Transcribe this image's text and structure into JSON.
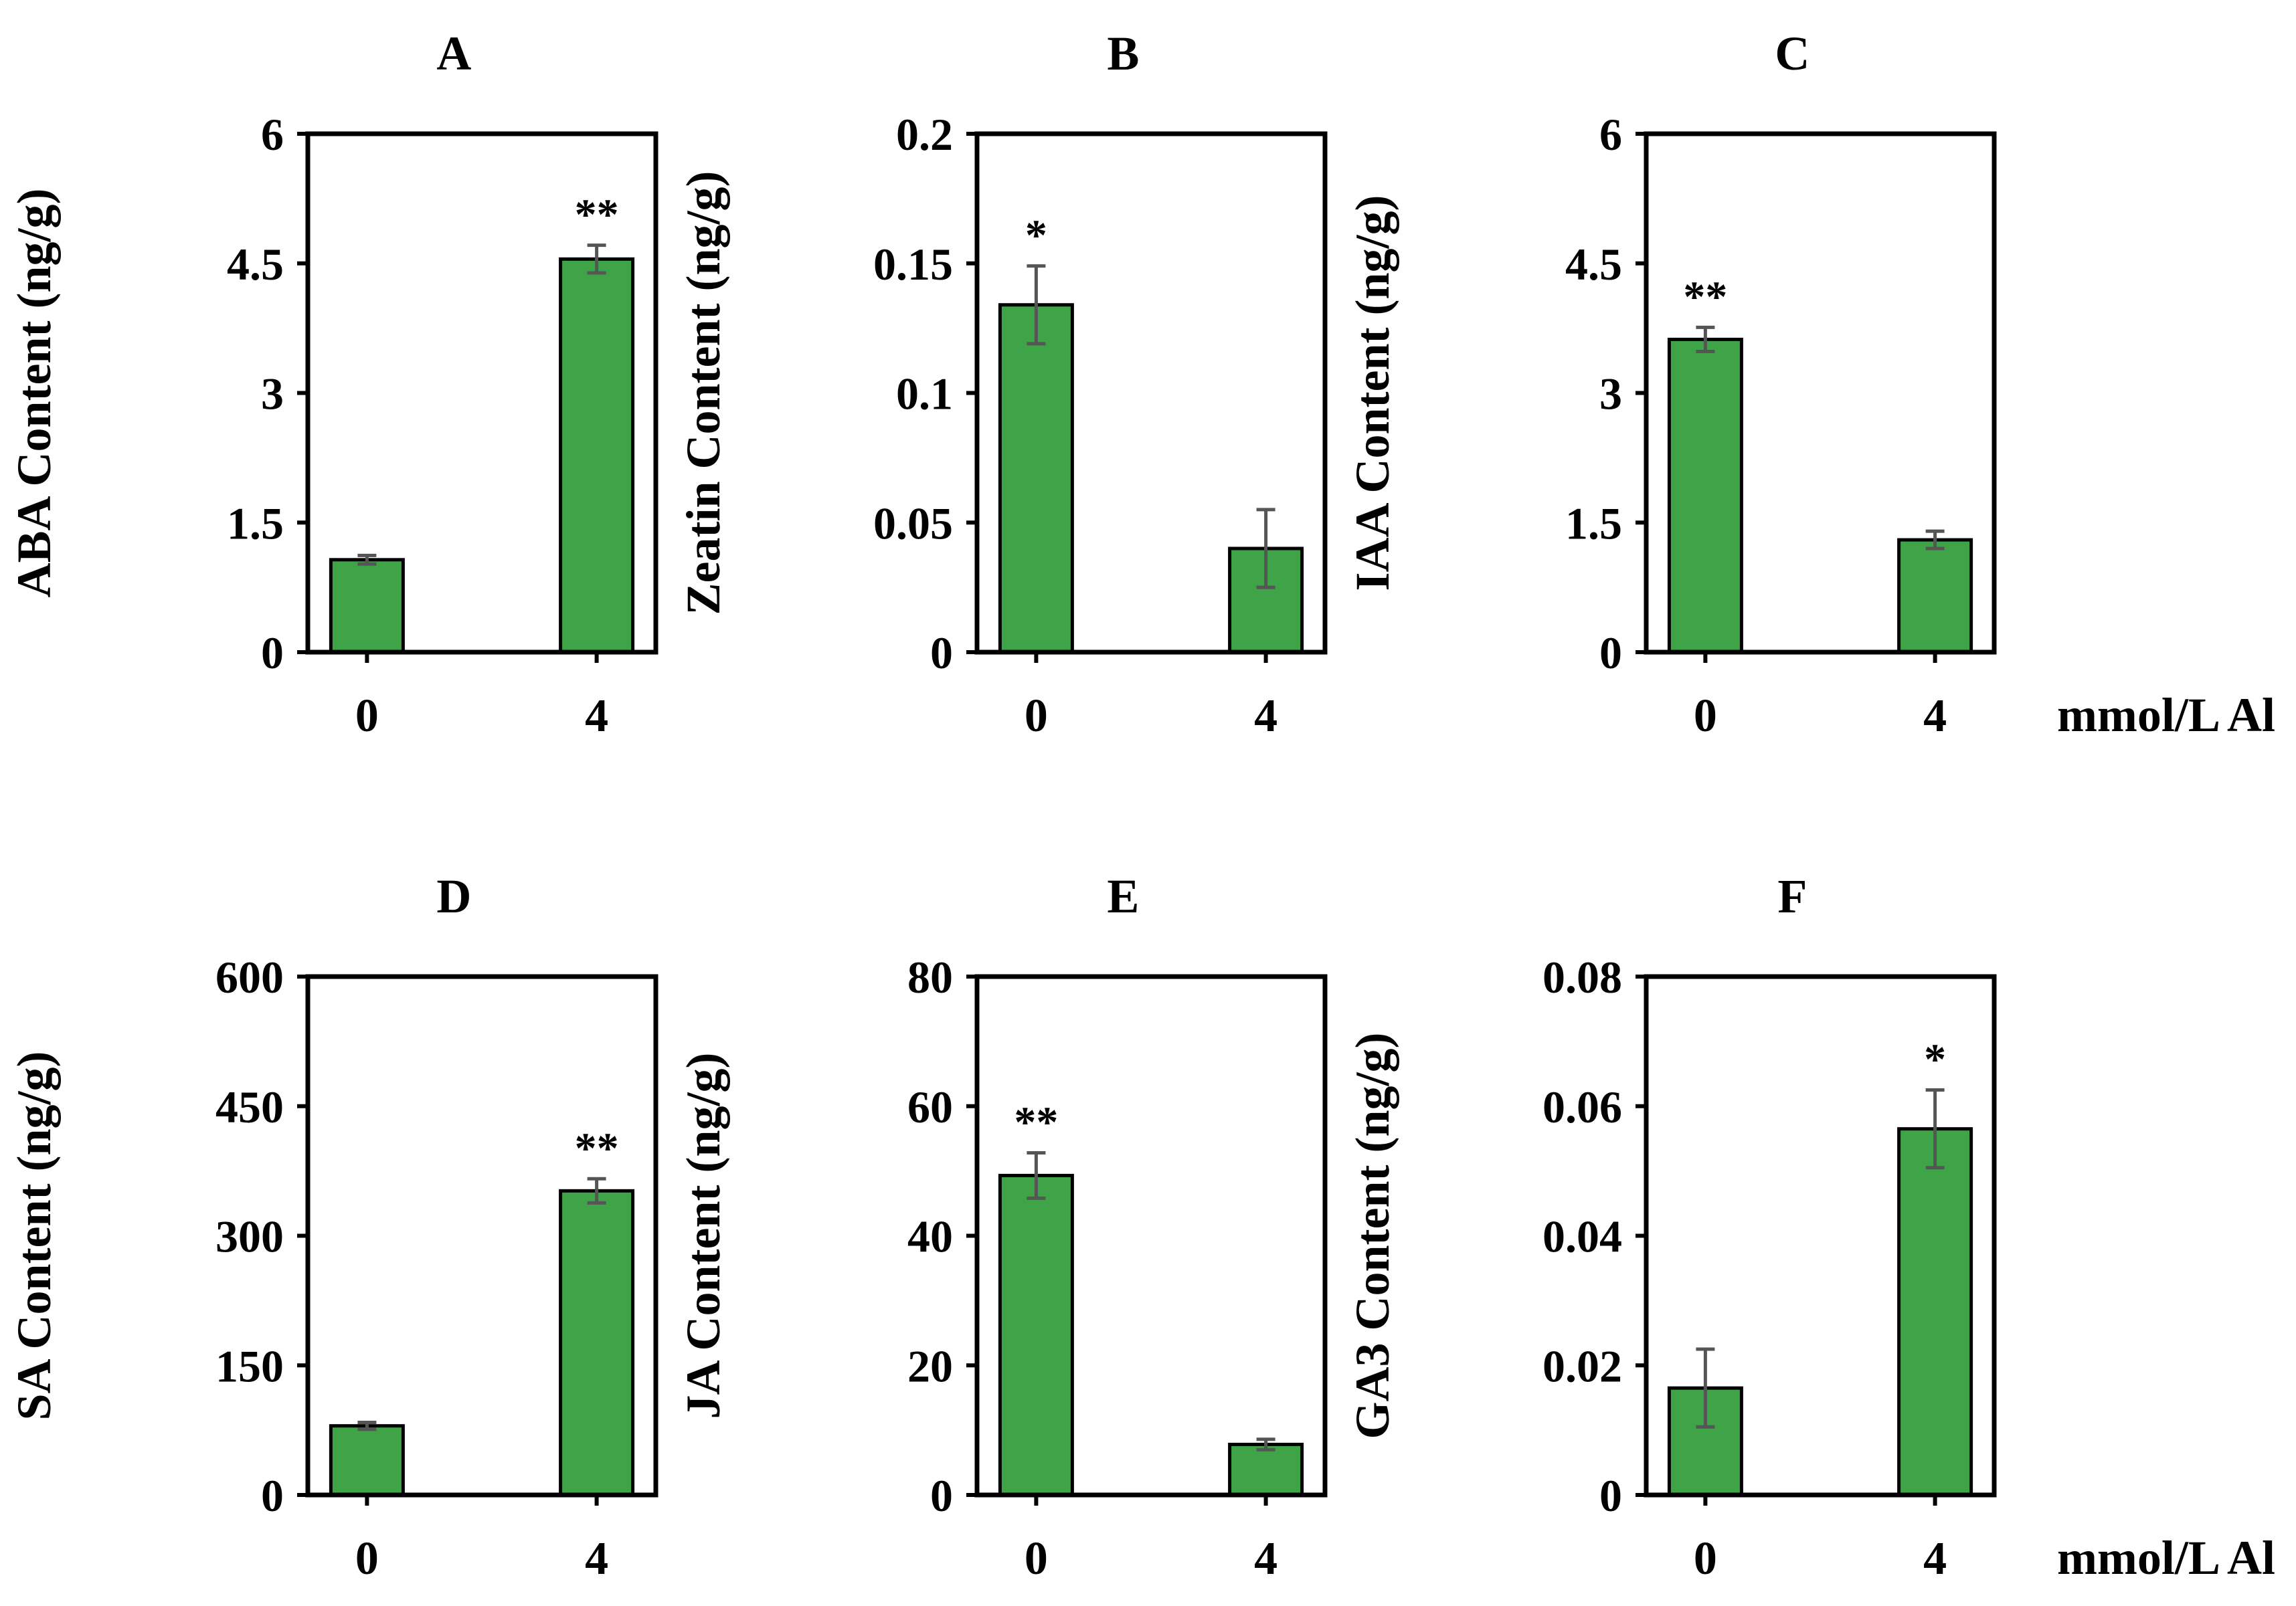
{
  "chart_data": [
    {
      "type": "bar",
      "title": "A",
      "ylabel": "ABA Content (ng/g)",
      "xlabel": "",
      "categories": [
        "0",
        "4"
      ],
      "values": [
        1.07,
        4.55
      ],
      "errors": [
        0.05,
        0.16
      ],
      "significance": [
        "",
        "**"
      ],
      "ylim": [
        0,
        6
      ],
      "yticks": [
        "0",
        "1.5",
        "3",
        "4.5",
        "6"
      ],
      "ytick_values": [
        0,
        1.5,
        3,
        4.5,
        6
      ],
      "color": "#3fa447",
      "grid": false
    },
    {
      "type": "bar",
      "title": "B",
      "ylabel": "Zeatin Content (ng/g)",
      "xlabel": "",
      "categories": [
        "0",
        "4"
      ],
      "values": [
        0.134,
        0.04
      ],
      "errors": [
        0.015,
        0.015
      ],
      "significance": [
        "*",
        ""
      ],
      "ylim": [
        0,
        0.2
      ],
      "yticks": [
        "0",
        "0.05",
        "0.1",
        "0.15",
        "0.2"
      ],
      "ytick_values": [
        0,
        0.05,
        0.1,
        0.15,
        0.2
      ],
      "color": "#3fa447",
      "grid": false
    },
    {
      "type": "bar",
      "title": "C",
      "ylabel": "IAA Content (ng/g)",
      "xlabel": "mmol/L Al",
      "categories": [
        "0",
        "4"
      ],
      "values": [
        3.62,
        1.3
      ],
      "errors": [
        0.14,
        0.1
      ],
      "significance": [
        "**",
        ""
      ],
      "ylim": [
        0,
        6
      ],
      "yticks": [
        "0",
        "1.5",
        "3",
        "4.5",
        "6"
      ],
      "ytick_values": [
        0,
        1.5,
        3,
        4.5,
        6
      ],
      "color": "#3fa447",
      "grid": false
    },
    {
      "type": "bar",
      "title": "D",
      "ylabel": "SA Content (ng/g)",
      "xlabel": "",
      "categories": [
        "0",
        "4"
      ],
      "values": [
        80,
        352
      ],
      "errors": [
        4,
        14
      ],
      "significance": [
        "",
        "**"
      ],
      "ylim": [
        0,
        600
      ],
      "yticks": [
        "0",
        "150",
        "300",
        "450",
        "600"
      ],
      "ytick_values": [
        0,
        150,
        300,
        450,
        600
      ],
      "color": "#3fa447",
      "grid": false
    },
    {
      "type": "bar",
      "title": "E",
      "ylabel": "JA Content (ng/g)",
      "xlabel": "",
      "categories": [
        "0",
        "4"
      ],
      "values": [
        49.3,
        7.8
      ],
      "errors": [
        3.5,
        0.8
      ],
      "significance": [
        "**",
        ""
      ],
      "ylim": [
        0,
        80
      ],
      "yticks": [
        "0",
        "20",
        "40",
        "60",
        "80"
      ],
      "ytick_values": [
        0,
        20,
        40,
        60,
        80
      ],
      "color": "#3fa447",
      "grid": false
    },
    {
      "type": "bar",
      "title": "F",
      "ylabel": "GA3 Content (ng/g)",
      "xlabel": "mmol/L Al",
      "categories": [
        "0",
        "4"
      ],
      "values": [
        0.0165,
        0.0565
      ],
      "errors": [
        0.006,
        0.006
      ],
      "significance": [
        "",
        "*"
      ],
      "ylim": [
        0,
        0.08
      ],
      "yticks": [
        "0",
        "0.02",
        "0.04",
        "0.06",
        "0.08"
      ],
      "ytick_values": [
        0,
        0.02,
        0.04,
        0.06,
        0.08
      ],
      "color": "#3fa447",
      "grid": false
    }
  ]
}
